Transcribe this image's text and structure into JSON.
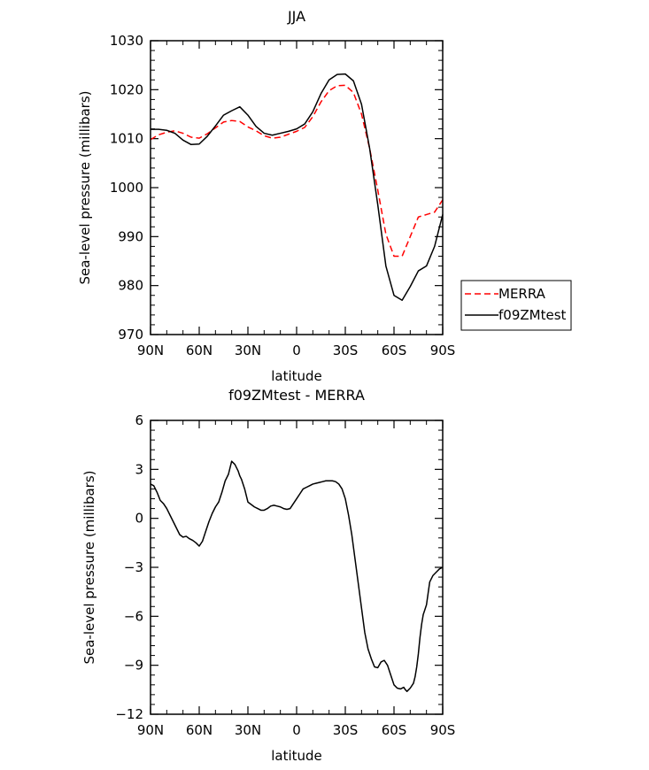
{
  "chart_data": [
    {
      "type": "line",
      "title": "JJA",
      "xlabel": "latitude",
      "ylabel": "Sea-level pressure (millibars)",
      "xlim": [
        90,
        -90
      ],
      "ylim": [
        970,
        1030
      ],
      "xticks": [
        90,
        60,
        30,
        0,
        -30,
        -60,
        -90
      ],
      "xtick_labels": [
        "90N",
        "60N",
        "30N",
        "0",
        "30S",
        "60S",
        "90S"
      ],
      "yticks": [
        970,
        980,
        990,
        1000,
        1010,
        1020,
        1030
      ],
      "ytick_labels": [
        "970",
        "980",
        "990",
        "1000",
        "1010",
        "1020",
        "1030"
      ],
      "grid": false,
      "legend_position": "right",
      "series": [
        {
          "name": "MERRA",
          "color": "#ff0000",
          "dash": "dashed",
          "x": [
            90,
            85,
            80,
            75,
            70,
            65,
            60,
            55,
            50,
            45,
            40,
            35,
            30,
            25,
            20,
            15,
            10,
            5,
            0,
            -5,
            -10,
            -15,
            -20,
            -25,
            -30,
            -35,
            -40,
            -45,
            -50,
            -55,
            -60,
            -65,
            -70,
            -75,
            -80,
            -85,
            -90
          ],
          "y": [
            1009.8,
            1010.8,
            1011.3,
            1011.6,
            1011.1,
            1010.3,
            1010.1,
            1011.0,
            1012.2,
            1013.4,
            1013.7,
            1013.5,
            1012.4,
            1011.6,
            1010.6,
            1010.1,
            1010.3,
            1010.9,
            1011.5,
            1012.3,
            1014.5,
            1017.5,
            1019.8,
            1020.8,
            1020.9,
            1019.4,
            1015.0,
            1008.0,
            999.5,
            990.5,
            986.0,
            986.0,
            990.0,
            994.0,
            994.5,
            995.0,
            997.5
          ]
        },
        {
          "name": "f09ZMtest",
          "color": "#000000",
          "dash": "solid",
          "x": [
            90,
            85,
            80,
            75,
            70,
            65,
            60,
            55,
            50,
            45,
            40,
            35,
            30,
            25,
            20,
            15,
            10,
            5,
            0,
            -5,
            -10,
            -15,
            -20,
            -25,
            -30,
            -35,
            -40,
            -45,
            -50,
            -55,
            -60,
            -65,
            -70,
            -75,
            -80,
            -85,
            -90
          ],
          "y": [
            1011.9,
            1011.9,
            1011.7,
            1011.1,
            1009.7,
            1008.8,
            1008.9,
            1010.5,
            1012.6,
            1014.8,
            1015.7,
            1016.5,
            1014.8,
            1012.5,
            1011.1,
            1010.7,
            1011.1,
            1011.5,
            1012.0,
            1013.0,
            1015.5,
            1019.2,
            1022.0,
            1023.1,
            1023.2,
            1021.8,
            1017.0,
            1008.0,
            996.5,
            984.0,
            978.0,
            977.0,
            979.8,
            983.0,
            984.0,
            988.0,
            994.5
          ]
        }
      ]
    },
    {
      "type": "line",
      "title": "f09ZMtest - MERRA",
      "xlabel": "latitude",
      "ylabel": "Sea-level pressure (millibars)",
      "xlim": [
        90,
        -90
      ],
      "ylim": [
        -12,
        6
      ],
      "xticks": [
        90,
        60,
        30,
        0,
        -30,
        -60,
        -90
      ],
      "xtick_labels": [
        "90N",
        "60N",
        "30N",
        "0",
        "30S",
        "60S",
        "90S"
      ],
      "yticks": [
        -12,
        -9,
        -6,
        -3,
        0,
        3,
        6
      ],
      "ytick_labels": [
        "−12",
        "−9",
        "−6",
        "−3",
        "0",
        "3",
        "6"
      ],
      "grid": false,
      "series": [
        {
          "color": "#000000",
          "dash": "solid",
          "x": [
            90,
            88,
            86,
            84,
            82,
            80,
            78,
            76,
            74,
            72,
            70,
            68,
            66,
            64,
            62,
            60,
            58,
            56,
            54,
            52,
            50,
            48,
            46,
            44,
            42,
            40,
            38,
            36,
            35,
            34,
            32,
            30,
            28,
            26,
            24,
            22,
            20,
            18,
            16,
            14,
            12,
            10,
            8,
            6,
            4,
            2,
            0,
            -2,
            -4,
            -6,
            -8,
            -10,
            -12,
            -14,
            -16,
            -18,
            -20,
            -22,
            -24,
            -26,
            -28,
            -30,
            -32,
            -34,
            -36,
            -38,
            -40,
            -42,
            -44,
            -46,
            -48,
            -50,
            -52,
            -54,
            -56,
            -58,
            -60,
            -62,
            -64,
            -66,
            -67,
            -68,
            -70,
            -72,
            -73,
            -74,
            -75,
            -76,
            -77,
            -78,
            -79,
            -80,
            -81,
            -82,
            -84,
            -86,
            -88,
            -90
          ],
          "y": [
            2.1,
            2.0,
            1.6,
            1.1,
            0.9,
            0.6,
            0.2,
            -0.2,
            -0.6,
            -1.0,
            -1.15,
            -1.1,
            -1.25,
            -1.35,
            -1.5,
            -1.7,
            -1.4,
            -0.8,
            -0.2,
            0.3,
            0.7,
            1.0,
            1.6,
            2.3,
            2.7,
            3.5,
            3.3,
            2.9,
            2.6,
            2.4,
            1.8,
            1.0,
            0.85,
            0.7,
            0.6,
            0.5,
            0.5,
            0.6,
            0.75,
            0.8,
            0.75,
            0.7,
            0.6,
            0.55,
            0.6,
            0.9,
            1.2,
            1.5,
            1.8,
            1.9,
            2.0,
            2.1,
            2.15,
            2.2,
            2.25,
            2.3,
            2.3,
            2.3,
            2.25,
            2.1,
            1.8,
            1.2,
            0.2,
            -1.0,
            -2.5,
            -4.0,
            -5.5,
            -7.0,
            -8.0,
            -8.6,
            -9.1,
            -9.15,
            -8.8,
            -8.7,
            -9.0,
            -9.6,
            -10.2,
            -10.4,
            -10.45,
            -10.35,
            -10.5,
            -10.6,
            -10.4,
            -10.1,
            -9.7,
            -9.1,
            -8.3,
            -7.3,
            -6.5,
            -5.9,
            -5.6,
            -5.3,
            -4.6,
            -3.9,
            -3.5,
            -3.3,
            -3.1,
            -3.0
          ]
        }
      ]
    }
  ]
}
